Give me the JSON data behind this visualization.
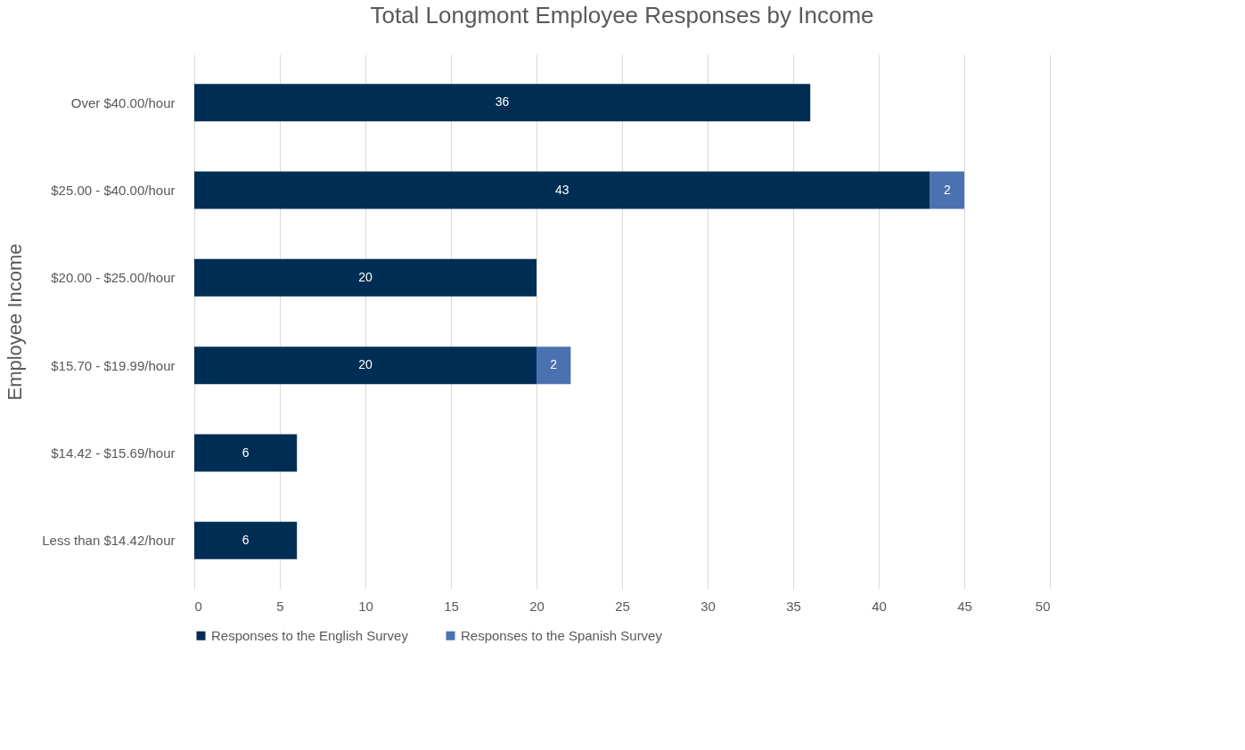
{
  "chart_data": {
    "type": "bar",
    "orientation": "horizontal",
    "stacked": true,
    "title": "Total Longmont Employee Responses by Income",
    "ylabel": "Employee Income",
    "categories": [
      "Over $40.00/hour",
      "$25.00 - $40.00/hour",
      "$20.00 - $25.00/hour",
      "$15.70 - $19.99/hour",
      "$14.42 - $15.69/hour",
      "Less than $14.42/hour"
    ],
    "series": [
      {
        "name": "Responses to the English Survey",
        "color": "#002d54",
        "values": [
          36,
          43,
          20,
          20,
          6,
          6
        ]
      },
      {
        "name": "Responses to the Spanish Survey",
        "color": "#4a72b0",
        "values": [
          null,
          2,
          null,
          2,
          null,
          null
        ]
      }
    ],
    "xlim": [
      0,
      50
    ],
    "xticks": [
      0,
      5,
      10,
      15,
      20,
      25,
      30,
      35,
      40,
      45,
      50
    ],
    "grid": "x",
    "legend": "bottom",
    "data_labels": true
  }
}
